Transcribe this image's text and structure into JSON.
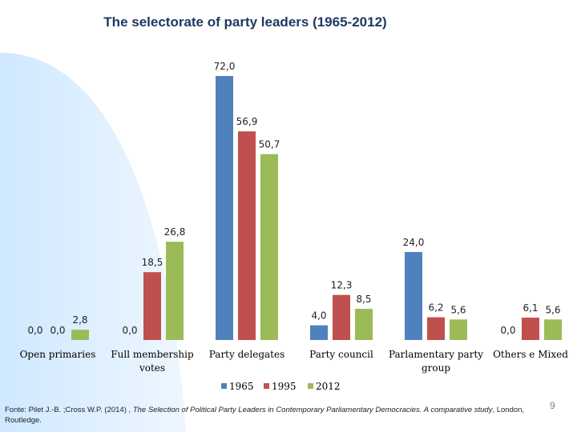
{
  "slide": {
    "source_prefix": "Fonte: Pilet J.-B. ;Cross W.P. (2014) , ",
    "source_italic": "The Selection of Political Party Leaders in Contemporary Parliamentary Democracies. A comparative study",
    "source_suffix": ", London, Routledge.",
    "page_number": "9"
  },
  "colors": {
    "series_1965": "#4f81bd",
    "series_1995": "#c0504d",
    "series_2012": "#9bbb59",
    "title": "#1f3864",
    "background_arc": "#dcefff"
  },
  "chart_data": {
    "type": "bar",
    "title": "The selectorate of party leaders (1965-2012)",
    "xlabel": "",
    "ylabel": "",
    "ylim": [
      0,
      72
    ],
    "grid": false,
    "legend": "bottom",
    "categories": [
      [
        "Open primaries"
      ],
      [
        "Full membership",
        "votes"
      ],
      [
        "Party delegates"
      ],
      [
        "Party council"
      ],
      [
        "Parlamentary party",
        "group"
      ],
      [
        "Others e Mixed"
      ]
    ],
    "series": [
      {
        "name": "1965",
        "values": [
          0.0,
          0.0,
          72.0,
          4.0,
          24.0,
          0.0
        ],
        "labels": [
          "0,0",
          "0,0",
          "72,0",
          "4,0",
          "24,0",
          "0,0"
        ]
      },
      {
        "name": "1995",
        "values": [
          0.0,
          18.5,
          56.9,
          12.3,
          6.2,
          6.1
        ],
        "labels": [
          "0,0",
          "18,5",
          "56,9",
          "12,3",
          "6,2",
          "6,1"
        ]
      },
      {
        "name": "2012",
        "values": [
          2.8,
          26.8,
          50.7,
          8.5,
          5.6,
          5.6
        ],
        "labels": [
          "2,8",
          "26,8",
          "50,7",
          "8,5",
          "5,6",
          "5,6"
        ]
      }
    ]
  }
}
